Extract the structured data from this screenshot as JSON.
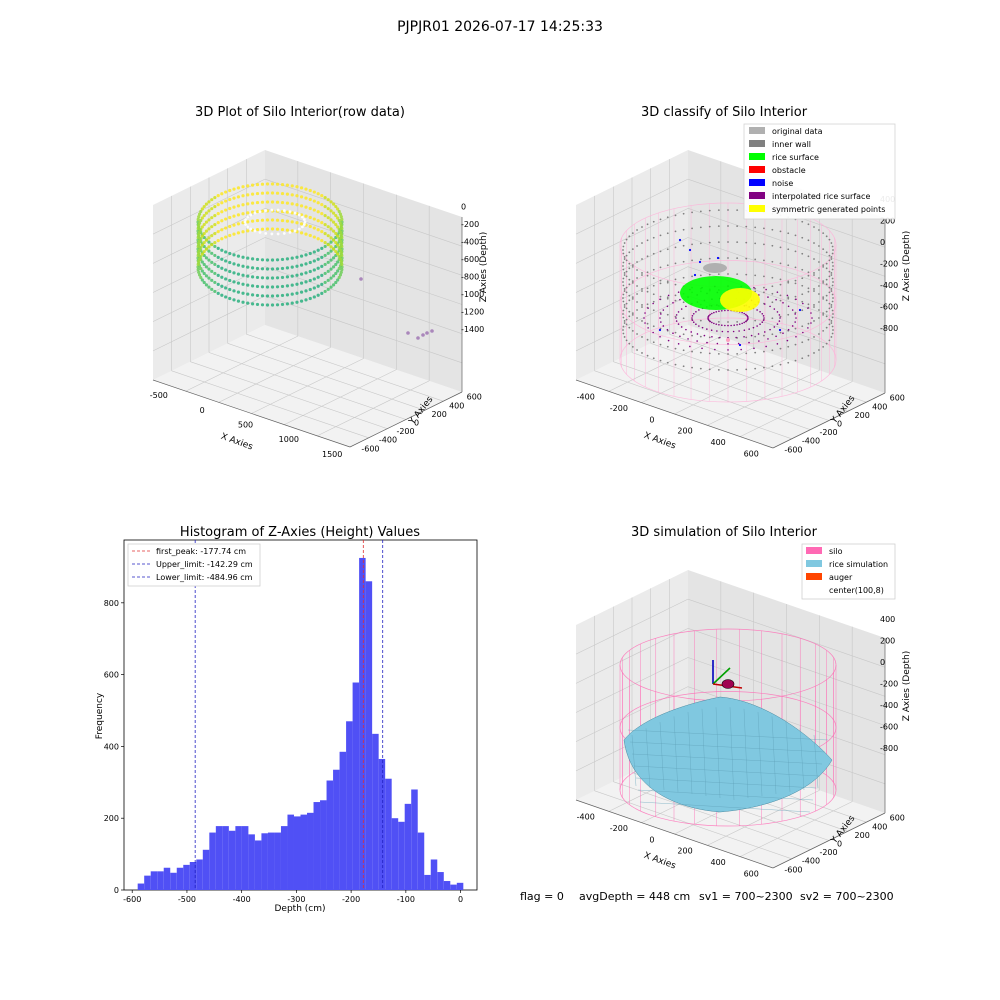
{
  "suptitle": "PJPJR01 2026-07-17 14:25:33",
  "footer": {
    "flag": "flag = 0",
    "avg": "avgDepth = 448 cm",
    "sv1": "sv1 = 700~2300",
    "sv2": "sv2 = 700~2300"
  },
  "colors": {
    "hist_bar": "#5050f5",
    "peak_line": "#e03030",
    "limit_line": "#2020c0",
    "silo": "#ff69b4",
    "rice": "#80c8e0",
    "auger": "#ff4500",
    "inner_wall": "#808080",
    "rice_surface": "#00ff00",
    "obstacle": "#ff0000",
    "noise": "#0000ff",
    "interp": "#800080",
    "symmetric": "#ffff00",
    "original": "#b0b0b0"
  },
  "chart_data": [
    {
      "type": "scatter",
      "subtype": "3d",
      "title": "3D Plot of Silo Interior(row data)",
      "xlabel": "X Axies",
      "ylabel": "Y Axies",
      "zlabel": "Z Axies (Depth)",
      "x_ticks": [
        "-500",
        "0",
        "500",
        "1000",
        "1500"
      ],
      "y_ticks": [
        "-600",
        "-400",
        "-200",
        "0",
        "200",
        "400",
        "600"
      ],
      "z_ticks": [
        "-1400",
        "-1200",
        "-1000",
        "-800",
        "-600",
        "-400",
        "-200",
        "0"
      ],
      "xlim": [
        -700,
        1700
      ],
      "ylim": [
        -700,
        700
      ],
      "zlim": [
        -1500,
        100
      ],
      "colormap": "viridis"
    },
    {
      "type": "scatter",
      "subtype": "3d",
      "title": "3D classify of Silo Interior",
      "xlabel": "X Axies",
      "ylabel": "Y Axies",
      "zlabel": "Z Axies (Depth)",
      "x_ticks": [
        "-400",
        "-200",
        "0",
        "200",
        "400",
        "600"
      ],
      "y_ticks": [
        "-600",
        "-400",
        "-200",
        "0",
        "200",
        "400",
        "600"
      ],
      "z_ticks": [
        "-800",
        "-600",
        "-400",
        "-200",
        "0",
        "200",
        "400"
      ],
      "legend": [
        {
          "label": "original data",
          "color": "#b0b0b0"
        },
        {
          "label": "inner wall",
          "color": "#808080"
        },
        {
          "label": "rice surface",
          "color": "#00ff00"
        },
        {
          "label": "obstacle",
          "color": "#ff0000"
        },
        {
          "label": "noise",
          "color": "#0000ff"
        },
        {
          "label": "interpolated rice surface",
          "color": "#800080"
        },
        {
          "label": "symmetric generated points",
          "color": "#ffff00"
        }
      ],
      "legend_loc": "top-right"
    },
    {
      "type": "bar",
      "subtype": "histogram",
      "title": "Histogram of Z-Axies (Height) Values",
      "xlabel": "Depth (cm)",
      "ylabel": "Frequency",
      "xlim": [
        -615,
        30
      ],
      "ylim": [
        0,
        975
      ],
      "x_ticks": [
        -600,
        -500,
        -400,
        -300,
        -200,
        -100,
        0
      ],
      "y_ticks": [
        0,
        200,
        400,
        600,
        800
      ],
      "bin_width": 11.9,
      "bin_start": -590,
      "values": [
        18,
        40,
        52,
        52,
        62,
        48,
        62,
        70,
        78,
        85,
        112,
        160,
        178,
        178,
        165,
        178,
        178,
        155,
        138,
        158,
        160,
        160,
        178,
        210,
        205,
        210,
        215,
        245,
        250,
        305,
        335,
        385,
        470,
        578,
        925,
        860,
        435,
        365,
        310,
        200,
        190,
        240,
        280,
        160,
        42,
        85,
        50,
        25,
        15,
        20
      ],
      "vlines": [
        {
          "label": "first_peak: -177.74 cm",
          "x": -177.74,
          "color": "#e03030"
        },
        {
          "label": "Upper_limit: -142.29 cm",
          "x": -142.29,
          "color": "#2020c0"
        },
        {
          "label": "Lower_limit: -484.96 cm",
          "x": -484.96,
          "color": "#2020c0"
        }
      ],
      "legend_loc": "top-left"
    },
    {
      "type": "surface",
      "subtype": "3d",
      "title": "3D simulation of Silo Interior",
      "xlabel": "X Axies",
      "ylabel": "Y Axies",
      "zlabel": "Z Axies (Depth)",
      "x_ticks": [
        "-400",
        "-200",
        "0",
        "200",
        "400",
        "600"
      ],
      "y_ticks": [
        "-600",
        "-400",
        "-200",
        "0",
        "200",
        "400",
        "600"
      ],
      "z_ticks": [
        "-800",
        "-600",
        "-400",
        "-200",
        "0",
        "200",
        "400"
      ],
      "legend": [
        {
          "label": "silo",
          "color": "#ff69b4"
        },
        {
          "label": "rice simulation",
          "color": "#80c8e0"
        },
        {
          "label": "auger",
          "color": "#ff4500"
        },
        {
          "label": "center(100,8)",
          "color": ""
        }
      ],
      "legend_loc": "top-right"
    }
  ]
}
